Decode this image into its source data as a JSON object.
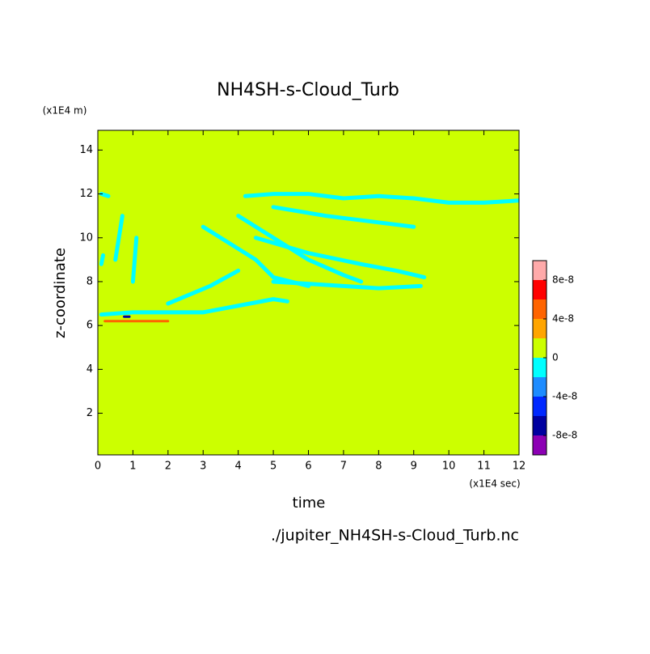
{
  "chart_data": {
    "type": "contour",
    "title": "NH4SH-s-Cloud_Turb",
    "x_label": "time",
    "y_label": "z-coordinate",
    "x_unit": "(x1E4 sec)",
    "y_unit": "(x1E4 m)",
    "source": "./jupiter_NH4SH-s-Cloud_Turb.nc",
    "xlim": [
      0,
      12
    ],
    "ylim": [
      0.1,
      14.9
    ],
    "xticks": [
      0,
      1,
      2,
      3,
      4,
      5,
      6,
      7,
      8,
      9,
      10,
      11,
      12
    ],
    "yticks": [
      2,
      4,
      6,
      8,
      10,
      12,
      14
    ],
    "levels": [
      -1e-07,
      -8e-08,
      -6e-08,
      -4e-08,
      -2e-08,
      0,
      2e-08,
      4e-08,
      6e-08,
      8e-08,
      1e-07
    ],
    "colors": [
      "#8c00b4",
      "#0000a0",
      "#0028ff",
      "#1e8cff",
      "#00ffff",
      "#ccff00",
      "#ffa500",
      "#ff6400",
      "#ff0000",
      "#ffaaaa"
    ],
    "colorbar_ticks": [
      {
        "value": -8e-08,
        "label": "-8e-8"
      },
      {
        "value": -4e-08,
        "label": "-4e-8"
      },
      0,
      {
        "value": 4e-08,
        "label": "4e-8"
      },
      {
        "value": 8e-08,
        "label": "8e-8"
      }
    ],
    "field": {
      "background": 0,
      "streaks": [
        {
          "x": [
            0.1,
            1,
            2,
            3,
            4,
            5,
            5.4
          ],
          "z": [
            6.5,
            6.6,
            6.6,
            6.6,
            6.9,
            7.2,
            7.1
          ],
          "value": -1e-08
        },
        {
          "x": [
            4.2,
            5,
            6,
            7,
            8,
            9,
            10,
            11,
            12
          ],
          "z": [
            11.9,
            12,
            12,
            11.8,
            11.9,
            11.8,
            11.6,
            11.6,
            11.7
          ],
          "value": -1e-08
        },
        {
          "x": [
            5,
            6,
            7,
            8,
            9.2
          ],
          "z": [
            8,
            7.9,
            7.8,
            7.7,
            7.8
          ],
          "value": -1e-08
        },
        {
          "x": [
            4,
            5,
            6,
            7,
            7.5
          ],
          "z": [
            11,
            10,
            9,
            8.3,
            8
          ],
          "value": -1e-08
        },
        {
          "x": [
            5,
            6.5,
            8,
            9
          ],
          "z": [
            11.4,
            11,
            10.7,
            10.5
          ],
          "value": -1e-08
        },
        {
          "x": [
            3,
            4,
            4.5,
            5,
            6
          ],
          "z": [
            10.5,
            9.5,
            9,
            8.2,
            7.8
          ],
          "value": -1e-08
        },
        {
          "x": [
            4.5,
            6,
            7.5,
            8.5,
            9.3
          ],
          "z": [
            10,
            9.3,
            8.8,
            8.5,
            8.2
          ],
          "value": -1e-08
        },
        {
          "x": [
            2,
            3.2,
            4
          ],
          "z": [
            7,
            7.8,
            8.5
          ],
          "value": -1e-08
        },
        {
          "x": [
            0.1,
            0.3
          ],
          "z": [
            12,
            11.9
          ],
          "value": -1e-08
        },
        {
          "x": [
            0.5,
            0.6,
            0.7
          ],
          "z": [
            9,
            10,
            11
          ],
          "value": -1e-08
        },
        {
          "x": [
            1,
            1.1
          ],
          "z": [
            8,
            10
          ],
          "value": -1e-08
        },
        {
          "x": [
            0.1,
            0.15
          ],
          "z": [
            8.8,
            9.2
          ],
          "value": -1e-08
        },
        {
          "x": [
            0.2,
            2
          ],
          "z": [
            6.2,
            6.2
          ],
          "value": 5e-08
        },
        {
          "x": [
            0.75,
            0.9
          ],
          "z": [
            6.4,
            6.4
          ],
          "value": -7e-08
        }
      ]
    }
  }
}
